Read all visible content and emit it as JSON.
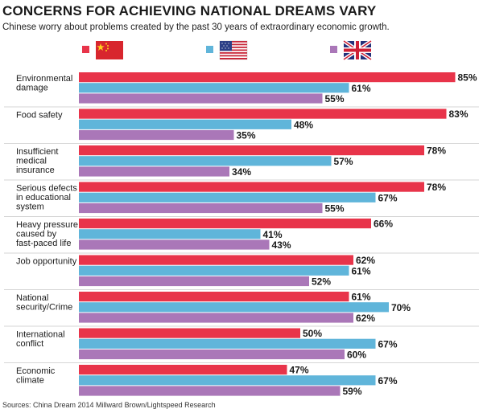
{
  "title": "CONCERNS FOR ACHIEVING NATIONAL DREAMS VARY",
  "subtitle": "Chinese worry about problems created by the past 30 years of extraordinary economic growth.",
  "source": "Sources: China Dream 2014 Millward Brown/Lightspeed Research",
  "colors": {
    "china": "#e8344a",
    "usa": "#60b5da",
    "uk": "#aa77b8"
  },
  "chart_data": {
    "type": "bar",
    "orientation": "horizontal",
    "categories": [
      [
        "Environmental",
        "damage"
      ],
      [
        "Food safety"
      ],
      [
        "Insufficient",
        "medical",
        "insurance"
      ],
      [
        "Serious defects",
        "in educational",
        "system"
      ],
      [
        "Heavy pressure",
        "caused by",
        "fast-paced life"
      ],
      [
        "Job opportunity"
      ],
      [
        "National",
        "security/Crime"
      ],
      [
        "International",
        "conflict"
      ],
      [
        "Economic",
        "climate"
      ]
    ],
    "series": [
      {
        "key": "china",
        "legend_icon": "china-flag-icon",
        "values": [
          85,
          83,
          78,
          78,
          66,
          62,
          61,
          50,
          47
        ]
      },
      {
        "key": "usa",
        "legend_icon": "usa-flag-icon",
        "values": [
          61,
          48,
          57,
          67,
          41,
          61,
          70,
          67,
          67
        ]
      },
      {
        "key": "uk",
        "legend_icon": "uk-flag-icon",
        "values": [
          55,
          35,
          34,
          55,
          43,
          52,
          62,
          60,
          59
        ]
      }
    ],
    "value_suffix": "%",
    "xlim": [
      0,
      100
    ],
    "legend_position": "top",
    "grid": false
  }
}
